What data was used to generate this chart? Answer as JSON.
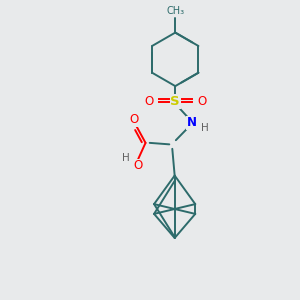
{
  "background_color": "#e8eaeb",
  "bond_color": "#2d6b6b",
  "atom_colors": {
    "O": "#ff0000",
    "N": "#0000ff",
    "S": "#cccc00",
    "C": "#2d6b6b",
    "H": "#606060"
  },
  "lw": 1.4,
  "fs": 8.5,
  "xlim": [
    0,
    10
  ],
  "ylim": [
    0,
    10
  ]
}
